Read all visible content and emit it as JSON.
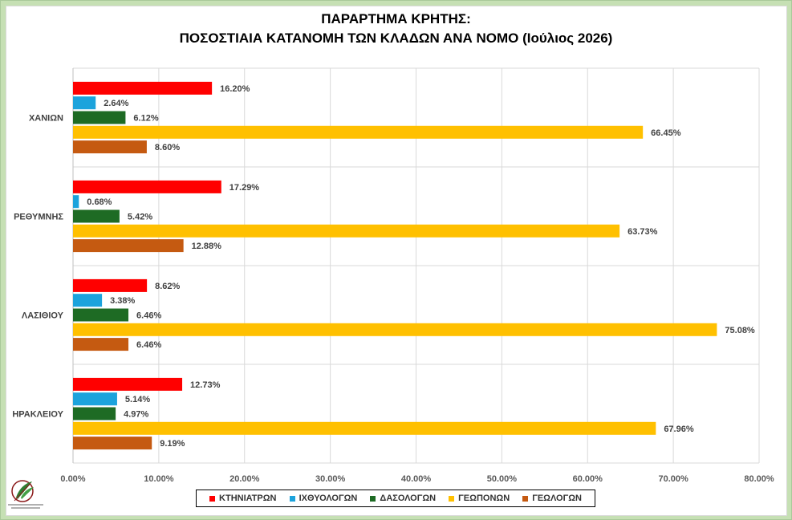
{
  "title_line1": "ΠΑΡΑΡΤΗΜΑ ΚΡΗΤΗΣ:",
  "title_line2": "ΠΟΣΟΣΤΙΑΙΑ ΚΑΤΑΝΟΜΗ ΤΩΝ ΚΛΑΔΩΝ ΑΝΑ ΝΟΜΟ (Ιούλιος 2026)",
  "logo": {
    "icon": "leaf-emblem-logo",
    "text": "ΓΕΩΤΕΧΝΙΚΟ ΕΠΙΜΕΛΗΤΗΡΙΟ ΕΛΛΑΔΑΣ"
  },
  "chart_data": {
    "type": "bar",
    "orientation": "horizontal",
    "title": "ΠΑΡΑΡΤΗΜΑ ΚΡΗΤΗΣ: ΠΟΣΟΣΤΙΑΙΑ ΚΑΤΑΝΟΜΗ ΤΩΝ ΚΛΑΔΩΝ ΑΝΑ ΝΟΜΟ (Ιούλιος 2026)",
    "categories": [
      "ΧΑΝΙΩΝ",
      "ΡΕΘΥΜΝΗΣ",
      "ΛΑΣΙΘΙΟΥ",
      "ΗΡΑΚΛΕΙΟΥ"
    ],
    "series": [
      {
        "name": "ΚΤΗΝΙΑΤΡΩΝ",
        "color": "#ff0000",
        "values": [
          16.2,
          17.29,
          8.62,
          12.73
        ]
      },
      {
        "name": "ΙΧΘΥΟΛΟΓΩΝ",
        "color": "#1ca3dc",
        "values": [
          2.64,
          0.68,
          3.38,
          5.14
        ]
      },
      {
        "name": "ΔΑΣΟΛΟΓΩΝ",
        "color": "#1e6b24",
        "values": [
          6.12,
          5.42,
          6.46,
          4.97
        ]
      },
      {
        "name": "ΓΕΩΠΟΝΩΝ",
        "color": "#ffc000",
        "values": [
          66.45,
          63.73,
          75.08,
          67.96
        ]
      },
      {
        "name": "ΓΕΩΛΟΓΩΝ",
        "color": "#c55a11",
        "values": [
          8.6,
          12.88,
          6.46,
          9.19
        ]
      }
    ],
    "value_labels": [
      [
        "16.20%",
        "17.29%",
        "8.62%",
        "12.73%"
      ],
      [
        "2.64%",
        "0.68%",
        "3.38%",
        "5.14%"
      ],
      [
        "6.12%",
        "5.42%",
        "6.46%",
        "4.97%"
      ],
      [
        "66.45%",
        "63.73%",
        "75.08%",
        "67.96%"
      ],
      [
        "8.60%",
        "12.88%",
        "6.46%",
        "9.19%"
      ]
    ],
    "xlim": [
      0,
      80
    ],
    "x_ticks": [
      "0.00%",
      "10.00%",
      "20.00%",
      "30.00%",
      "40.00%",
      "50.00%",
      "60.00%",
      "70.00%",
      "80.00%"
    ],
    "grid": true,
    "legend_position": "bottom"
  }
}
